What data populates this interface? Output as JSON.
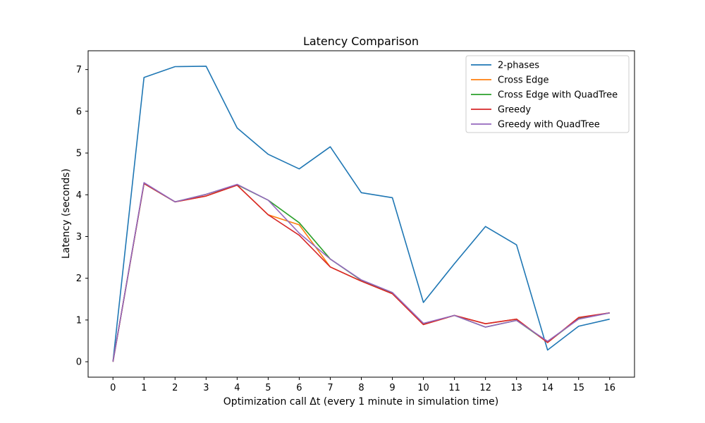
{
  "chart_data": {
    "type": "line",
    "title": "Latency Comparison",
    "xlabel": "Optimization call Δt (every 1 minute in simulation time)",
    "ylabel": "Latency (seconds)",
    "x": [
      0,
      1,
      2,
      3,
      4,
      5,
      6,
      7,
      8,
      9,
      10,
      11,
      12,
      13,
      14,
      15,
      16
    ],
    "xlim": [
      -0.8,
      16.8
    ],
    "ylim": [
      -0.37,
      7.45
    ],
    "xticks": [
      0,
      1,
      2,
      3,
      4,
      5,
      6,
      7,
      8,
      9,
      10,
      11,
      12,
      13,
      14,
      15,
      16
    ],
    "yticks": [
      0,
      1,
      2,
      3,
      4,
      5,
      6,
      7
    ],
    "grid": false,
    "legend_position": "top-right",
    "series": [
      {
        "name": "2-phases",
        "color": "#1f77b4",
        "values": [
          0.0,
          6.81,
          7.07,
          7.08,
          5.6,
          4.97,
          4.62,
          5.15,
          4.05,
          3.93,
          1.42,
          2.35,
          3.24,
          2.8,
          0.28,
          0.85,
          1.02
        ]
      },
      {
        "name": "Cross Edge",
        "color": "#ff7f0e",
        "values": [
          0.0,
          4.27,
          3.83,
          3.97,
          4.23,
          3.52,
          3.28,
          2.27,
          1.93,
          1.63,
          0.89,
          1.11,
          0.91,
          1.02,
          0.46,
          1.05,
          1.17
        ]
      },
      {
        "name": "Cross Edge with QuadTree",
        "color": "#2ca02c",
        "values": [
          0.0,
          4.27,
          3.83,
          4.01,
          4.24,
          3.87,
          3.33,
          2.46,
          1.95,
          1.65,
          0.91,
          1.11,
          0.83,
          0.99,
          0.47,
          1.03,
          1.17
        ]
      },
      {
        "name": "Greedy",
        "color": "#d62728",
        "values": [
          0.0,
          4.27,
          3.83,
          3.97,
          4.23,
          3.52,
          3.03,
          2.27,
          1.93,
          1.63,
          0.89,
          1.11,
          0.91,
          1.02,
          0.46,
          1.06,
          1.17
        ]
      },
      {
        "name": "Greedy with QuadTree",
        "color": "#9467bd",
        "values": [
          0.0,
          4.29,
          3.83,
          4.01,
          4.25,
          3.87,
          3.08,
          2.46,
          1.96,
          1.66,
          0.92,
          1.11,
          0.83,
          0.99,
          0.49,
          1.02,
          1.17
        ]
      }
    ]
  }
}
